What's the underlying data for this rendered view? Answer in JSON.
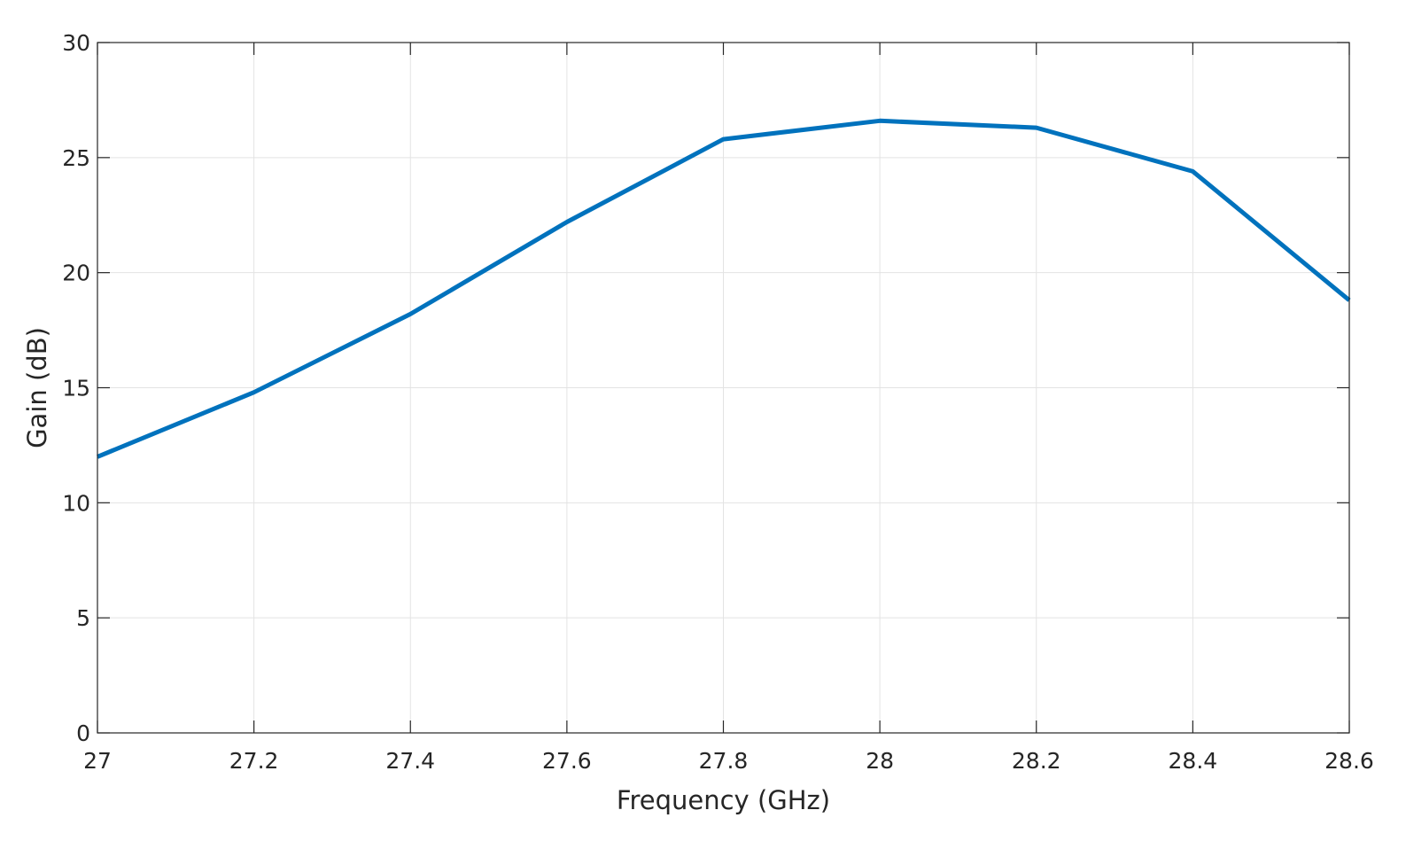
{
  "chart_data": {
    "type": "line",
    "xlabel": "Frequency (GHz)",
    "ylabel": "Gain (dB)",
    "xlim": [
      27,
      28.6
    ],
    "ylim": [
      0,
      30
    ],
    "xticks": [
      27,
      27.2,
      27.4,
      27.6,
      27.8,
      28,
      28.2,
      28.4,
      28.6
    ],
    "xtick_labels": [
      "27",
      "27.2",
      "27.4",
      "27.6",
      "27.8",
      "28",
      "28.2",
      "28.4",
      "28.6"
    ],
    "yticks": [
      0,
      5,
      10,
      15,
      20,
      25,
      30
    ],
    "ytick_labels": [
      "0",
      "5",
      "10",
      "15",
      "20",
      "25",
      "30"
    ],
    "grid": true,
    "legend": "none",
    "series": [
      {
        "color": "#0072bd",
        "x": [
          27,
          27.2,
          27.4,
          27.6,
          27.8,
          28,
          28.2,
          28.4,
          28.6
        ],
        "y": [
          12.0,
          14.8,
          18.2,
          22.2,
          25.8,
          26.6,
          26.3,
          24.4,
          18.8
        ]
      }
    ]
  }
}
